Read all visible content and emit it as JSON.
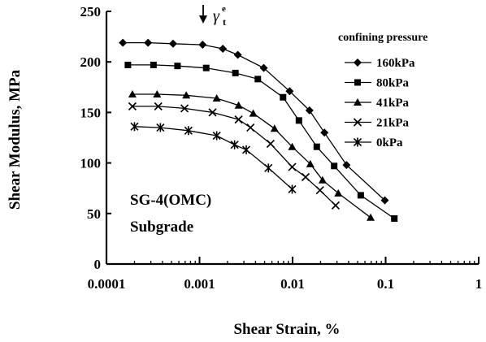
{
  "chart_data": {
    "type": "line",
    "xlabel": "Shear Strain, %",
    "ylabel": "Shear Modulus, MPa",
    "xscale": "log",
    "xlim": [
      0.0001,
      1
    ],
    "ylim": [
      0,
      250
    ],
    "xticks": [
      "0.0001",
      "0.001",
      "0.01",
      "0.1",
      "1"
    ],
    "yticks": [
      "0",
      "50",
      "100",
      "150",
      "200",
      "250"
    ],
    "grid": false,
    "legend": {
      "title": "confining pressure",
      "position": "top-right"
    },
    "annotations": [
      {
        "text": "SG-4(OMC)",
        "position": "lower-left"
      },
      {
        "text": "Subgrade",
        "position": "lower-left"
      },
      {
        "text": "γet",
        "symbol": "γ",
        "sup": "e",
        "sub": "t",
        "arrow_at_x": 0.0011,
        "arrow_to_y": 220
      }
    ],
    "series": [
      {
        "name": "160kPa",
        "marker": "diamond",
        "x": [
          0.00015,
          0.00028,
          0.00052,
          0.00108,
          0.00178,
          0.00258,
          0.0049,
          0.0093,
          0.0152,
          0.022,
          0.038,
          0.098
        ],
        "y": [
          219,
          219,
          218,
          217,
          213,
          207,
          194,
          171,
          152,
          130,
          98,
          63
        ]
      },
      {
        "name": "80kPa",
        "marker": "square",
        "x": [
          0.00017,
          0.00032,
          0.00058,
          0.00118,
          0.00243,
          0.00423,
          0.0079,
          0.0117,
          0.0182,
          0.028,
          0.054,
          0.124
        ],
        "y": [
          197,
          197,
          196,
          194,
          189,
          183,
          165,
          142,
          116,
          97,
          68,
          45
        ]
      },
      {
        "name": "41kPa",
        "marker": "triangle",
        "x": [
          0.00019,
          0.00035,
          0.00072,
          0.00153,
          0.00263,
          0.00378,
          0.0064,
          0.0099,
          0.0155,
          0.021,
          0.031,
          0.069
        ],
        "y": [
          168,
          168,
          167,
          164,
          157,
          149,
          134,
          116,
          99,
          83,
          70,
          46
        ]
      },
      {
        "name": "21kPa",
        "marker": "x",
        "x": [
          0.00019,
          0.00036,
          0.00069,
          0.00138,
          0.00263,
          0.00353,
          0.0058,
          0.0099,
          0.0138,
          0.0197,
          0.029
        ],
        "y": [
          156,
          156,
          154,
          150,
          143,
          135,
          119,
          96,
          86,
          73,
          58
        ]
      },
      {
        "name": "0kPa",
        "marker": "asterisk",
        "x": [
          0.0002,
          0.00038,
          0.00076,
          0.00153,
          0.00238,
          0.00318,
          0.0055,
          0.0099
        ],
        "y": [
          136,
          135,
          132,
          127,
          118,
          113,
          95,
          74
        ]
      }
    ]
  }
}
